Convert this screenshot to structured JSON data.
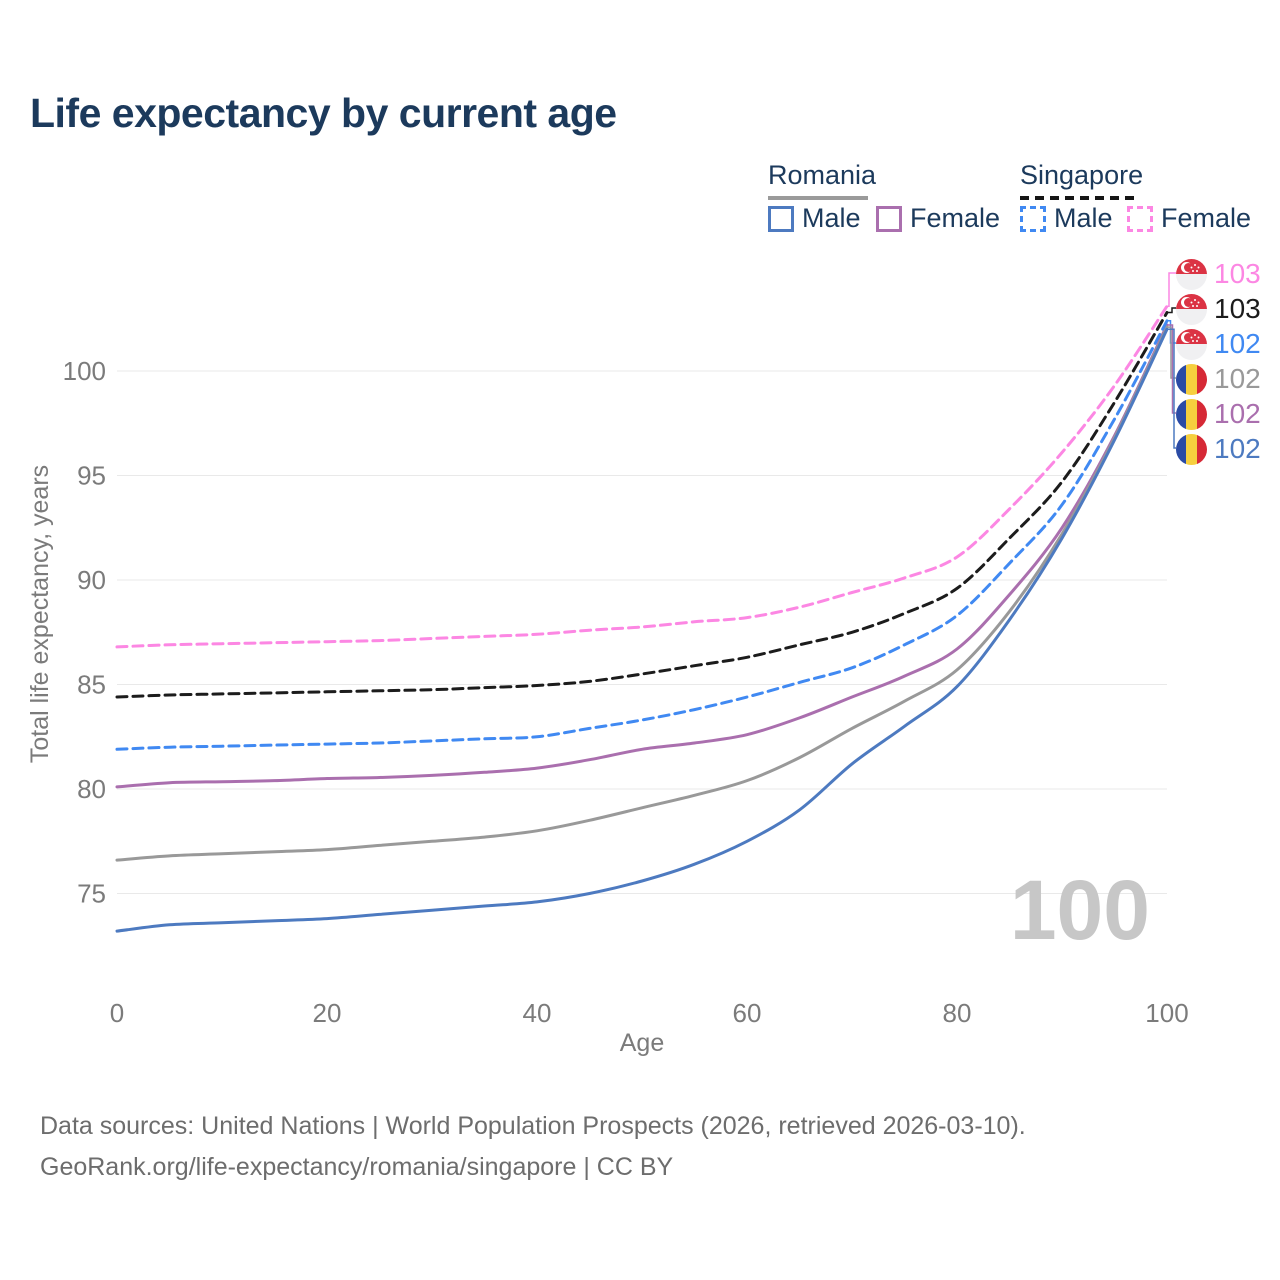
{
  "title": "Life expectancy by current age",
  "legend": {
    "romania_label": "Romania",
    "singapore_label": "Singapore",
    "ro_male": "Male",
    "ro_female": "Female",
    "sg_male": "Male",
    "sg_female": "Female"
  },
  "watermark": "100",
  "endpoints": [
    {
      "series": "Singapore Female",
      "flag": "singapore",
      "value": "103"
    },
    {
      "series": "Singapore",
      "flag": "singapore",
      "value": "103"
    },
    {
      "series": "Singapore Male",
      "flag": "singapore",
      "value": "102"
    },
    {
      "series": "Romania",
      "flag": "romania",
      "value": "102"
    },
    {
      "series": "Romania Female",
      "flag": "romania",
      "value": "102"
    },
    {
      "series": "Romania Male",
      "flag": "romania",
      "value": "102"
    }
  ],
  "footer": {
    "line1": "Data sources: United Nations | World Population Prospects (2026, retrieved 2026-03-10).",
    "line2": "GeoRank.org/life-expectancy/romania/singapore | CC BY"
  },
  "chart_data": {
    "type": "line",
    "title": "Life expectancy by current age",
    "xlabel": "Age",
    "ylabel": "Total life expectancy, years",
    "x_ticks": [
      0,
      20,
      40,
      60,
      80,
      100
    ],
    "y_ticks": [
      75,
      80,
      85,
      90,
      95,
      100
    ],
    "xlim": [
      0,
      100
    ],
    "ylim": [
      72,
      104
    ],
    "grid": "horizontal",
    "legend_position": "top-right",
    "x": [
      0,
      5,
      10,
      15,
      20,
      25,
      30,
      35,
      40,
      45,
      50,
      55,
      60,
      65,
      70,
      75,
      80,
      85,
      90,
      95,
      100
    ],
    "series": [
      {
        "name": "Singapore Female",
        "country": "Singapore",
        "sex": "Female",
        "style": "dashed",
        "color": "#fc87e3",
        "values": [
          86.8,
          86.9,
          86.95,
          87.0,
          87.05,
          87.1,
          87.2,
          87.3,
          87.4,
          87.6,
          87.75,
          88.0,
          88.2,
          88.7,
          89.4,
          90.1,
          91.1,
          93.4,
          96.1,
          99.3,
          103.1
        ]
      },
      {
        "name": "Singapore",
        "country": "Singapore",
        "sex": "Both",
        "style": "dashed",
        "color": "#1c1c1c",
        "values": [
          84.4,
          84.5,
          84.55,
          84.6,
          84.65,
          84.7,
          84.75,
          84.85,
          84.95,
          85.15,
          85.5,
          85.9,
          86.3,
          86.9,
          87.5,
          88.4,
          89.6,
          92.0,
          94.7,
          98.5,
          102.8
        ]
      },
      {
        "name": "Singapore Male",
        "country": "Singapore",
        "sex": "Male",
        "style": "dashed",
        "color": "#4089f2",
        "values": [
          81.9,
          82.0,
          82.05,
          82.1,
          82.15,
          82.2,
          82.3,
          82.4,
          82.5,
          82.9,
          83.3,
          83.8,
          84.4,
          85.1,
          85.8,
          86.9,
          88.3,
          90.8,
          93.6,
          97.7,
          102.4
        ]
      },
      {
        "name": "Romania Female",
        "country": "Romania",
        "sex": "Female",
        "style": "solid",
        "color": "#aa6fae",
        "values": [
          80.1,
          80.3,
          80.35,
          80.4,
          80.5,
          80.55,
          80.65,
          80.8,
          81.0,
          81.4,
          81.9,
          82.2,
          82.6,
          83.4,
          84.4,
          85.4,
          86.7,
          89.3,
          92.5,
          96.9,
          102.2
        ]
      },
      {
        "name": "Romania",
        "country": "Romania",
        "sex": "Both",
        "style": "solid",
        "color": "#999999",
        "values": [
          76.6,
          76.8,
          76.9,
          77.0,
          77.1,
          77.3,
          77.5,
          77.7,
          78.0,
          78.5,
          79.1,
          79.7,
          80.4,
          81.5,
          82.9,
          84.2,
          85.7,
          88.5,
          92.2,
          96.8,
          102.1
        ]
      },
      {
        "name": "Romania Male",
        "country": "Romania",
        "sex": "Male",
        "style": "solid",
        "color": "#4d7ac0",
        "values": [
          73.2,
          73.5,
          73.6,
          73.7,
          73.8,
          74.0,
          74.2,
          74.4,
          74.6,
          75.0,
          75.6,
          76.4,
          77.5,
          79.0,
          81.2,
          83.0,
          84.9,
          88.1,
          92.0,
          96.7,
          102.0
        ]
      }
    ]
  }
}
